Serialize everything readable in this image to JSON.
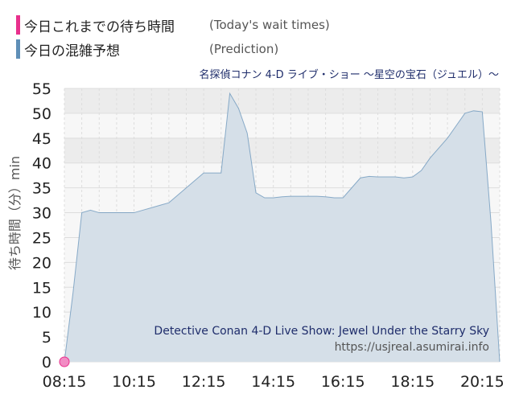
{
  "legend": [
    {
      "label": "今日これまでの待ち時間",
      "sub": "(Today's wait times)",
      "color": "#e8308c"
    },
    {
      "label": "今日の混雑予想",
      "sub": "(Prediction)",
      "color": "#5f8fb7"
    }
  ],
  "chart_data": {
    "type": "area",
    "title": "名探偵コナン 4-D ライブ・ショー ～星空の宝石（ジュエル）～",
    "ylabel": "待ち時間（分）min",
    "xlabel": "",
    "watermark_title": "Detective Conan 4-D Live Show: Jewel Under the Starry Sky",
    "watermark_url": "https://usjreal.asumirai.info",
    "ylim": [
      0,
      55
    ],
    "yticks": [
      "0",
      "5",
      "10",
      "15",
      "20",
      "25",
      "30",
      "35",
      "40",
      "45",
      "50",
      "55"
    ],
    "xticks": [
      "08:15",
      "10:15",
      "12:15",
      "14:15",
      "16:15",
      "18:15",
      "20:15"
    ],
    "series": [
      {
        "name": "今日の混雑予想",
        "color": "#5f8fb7",
        "x": [
          "08:15",
          "08:30",
          "08:45",
          "09:00",
          "09:15",
          "09:30",
          "09:45",
          "10:00",
          "10:15",
          "10:30",
          "10:45",
          "11:00",
          "11:15",
          "11:30",
          "11:45",
          "12:00",
          "12:15",
          "12:30",
          "12:45",
          "13:00",
          "13:15",
          "13:30",
          "13:45",
          "14:00",
          "14:15",
          "14:30",
          "14:45",
          "15:00",
          "15:15",
          "15:30",
          "15:45",
          "16:00",
          "16:15",
          "16:30",
          "16:45",
          "17:00",
          "17:15",
          "17:30",
          "17:45",
          "18:00",
          "18:15",
          "18:30",
          "18:45",
          "19:00",
          "19:15",
          "19:30",
          "19:45",
          "20:00",
          "20:15",
          "20:30",
          "20:45"
        ],
        "values": [
          0,
          14,
          30,
          30.5,
          30,
          30,
          30,
          30,
          30,
          30.5,
          31,
          31.5,
          32,
          33.5,
          35,
          36.5,
          38,
          38,
          38,
          54,
          51,
          46,
          34,
          33,
          33,
          33.2,
          33.3,
          33.3,
          33.3,
          33.3,
          33.2,
          33,
          33,
          35,
          37,
          37.3,
          37.2,
          37.2,
          37.2,
          37,
          37.2,
          38.5,
          41,
          43,
          45,
          47.5,
          50,
          50.5,
          50.3,
          28,
          0
        ]
      },
      {
        "name": "今日これまでの待ち時間",
        "color": "#e8308c",
        "x": [
          "08:15"
        ],
        "values": [
          0
        ]
      }
    ]
  }
}
